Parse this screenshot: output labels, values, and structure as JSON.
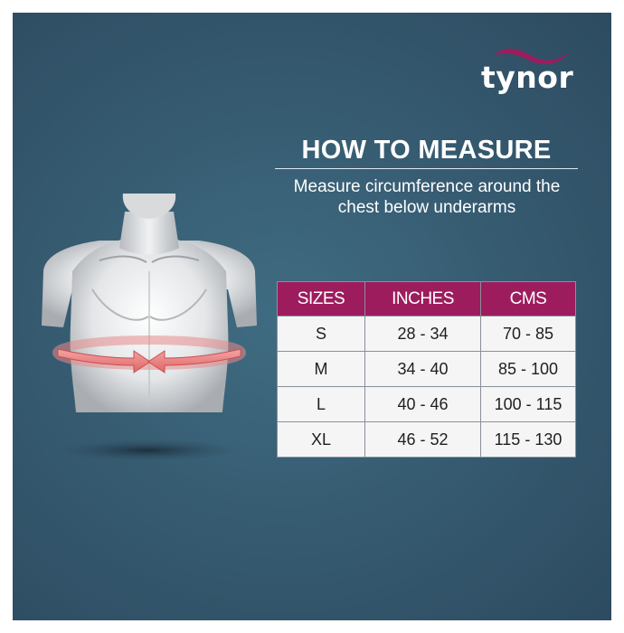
{
  "brand": {
    "name": "tynor",
    "accent_color": "#9d1c5e",
    "swoosh_icon": "swoosh-icon"
  },
  "heading": {
    "title": "HOW TO MEASURE",
    "instruction": "Measure circumference around the chest below underarms"
  },
  "illustration": {
    "icon": "torso-measurement-illustration"
  },
  "size_table": {
    "header_color": "#9d1c5e",
    "columns": [
      "SIZES",
      "INCHES",
      "CMS"
    ],
    "rows": [
      {
        "size": "S",
        "inches": "28 - 34",
        "cms": "70 - 85"
      },
      {
        "size": "M",
        "inches": "34 - 40",
        "cms": "85 - 100"
      },
      {
        "size": "L",
        "inches": "40 - 46",
        "cms": "100 - 115"
      },
      {
        "size": "XL",
        "inches": "46 - 52",
        "cms": "115 - 130"
      }
    ]
  }
}
